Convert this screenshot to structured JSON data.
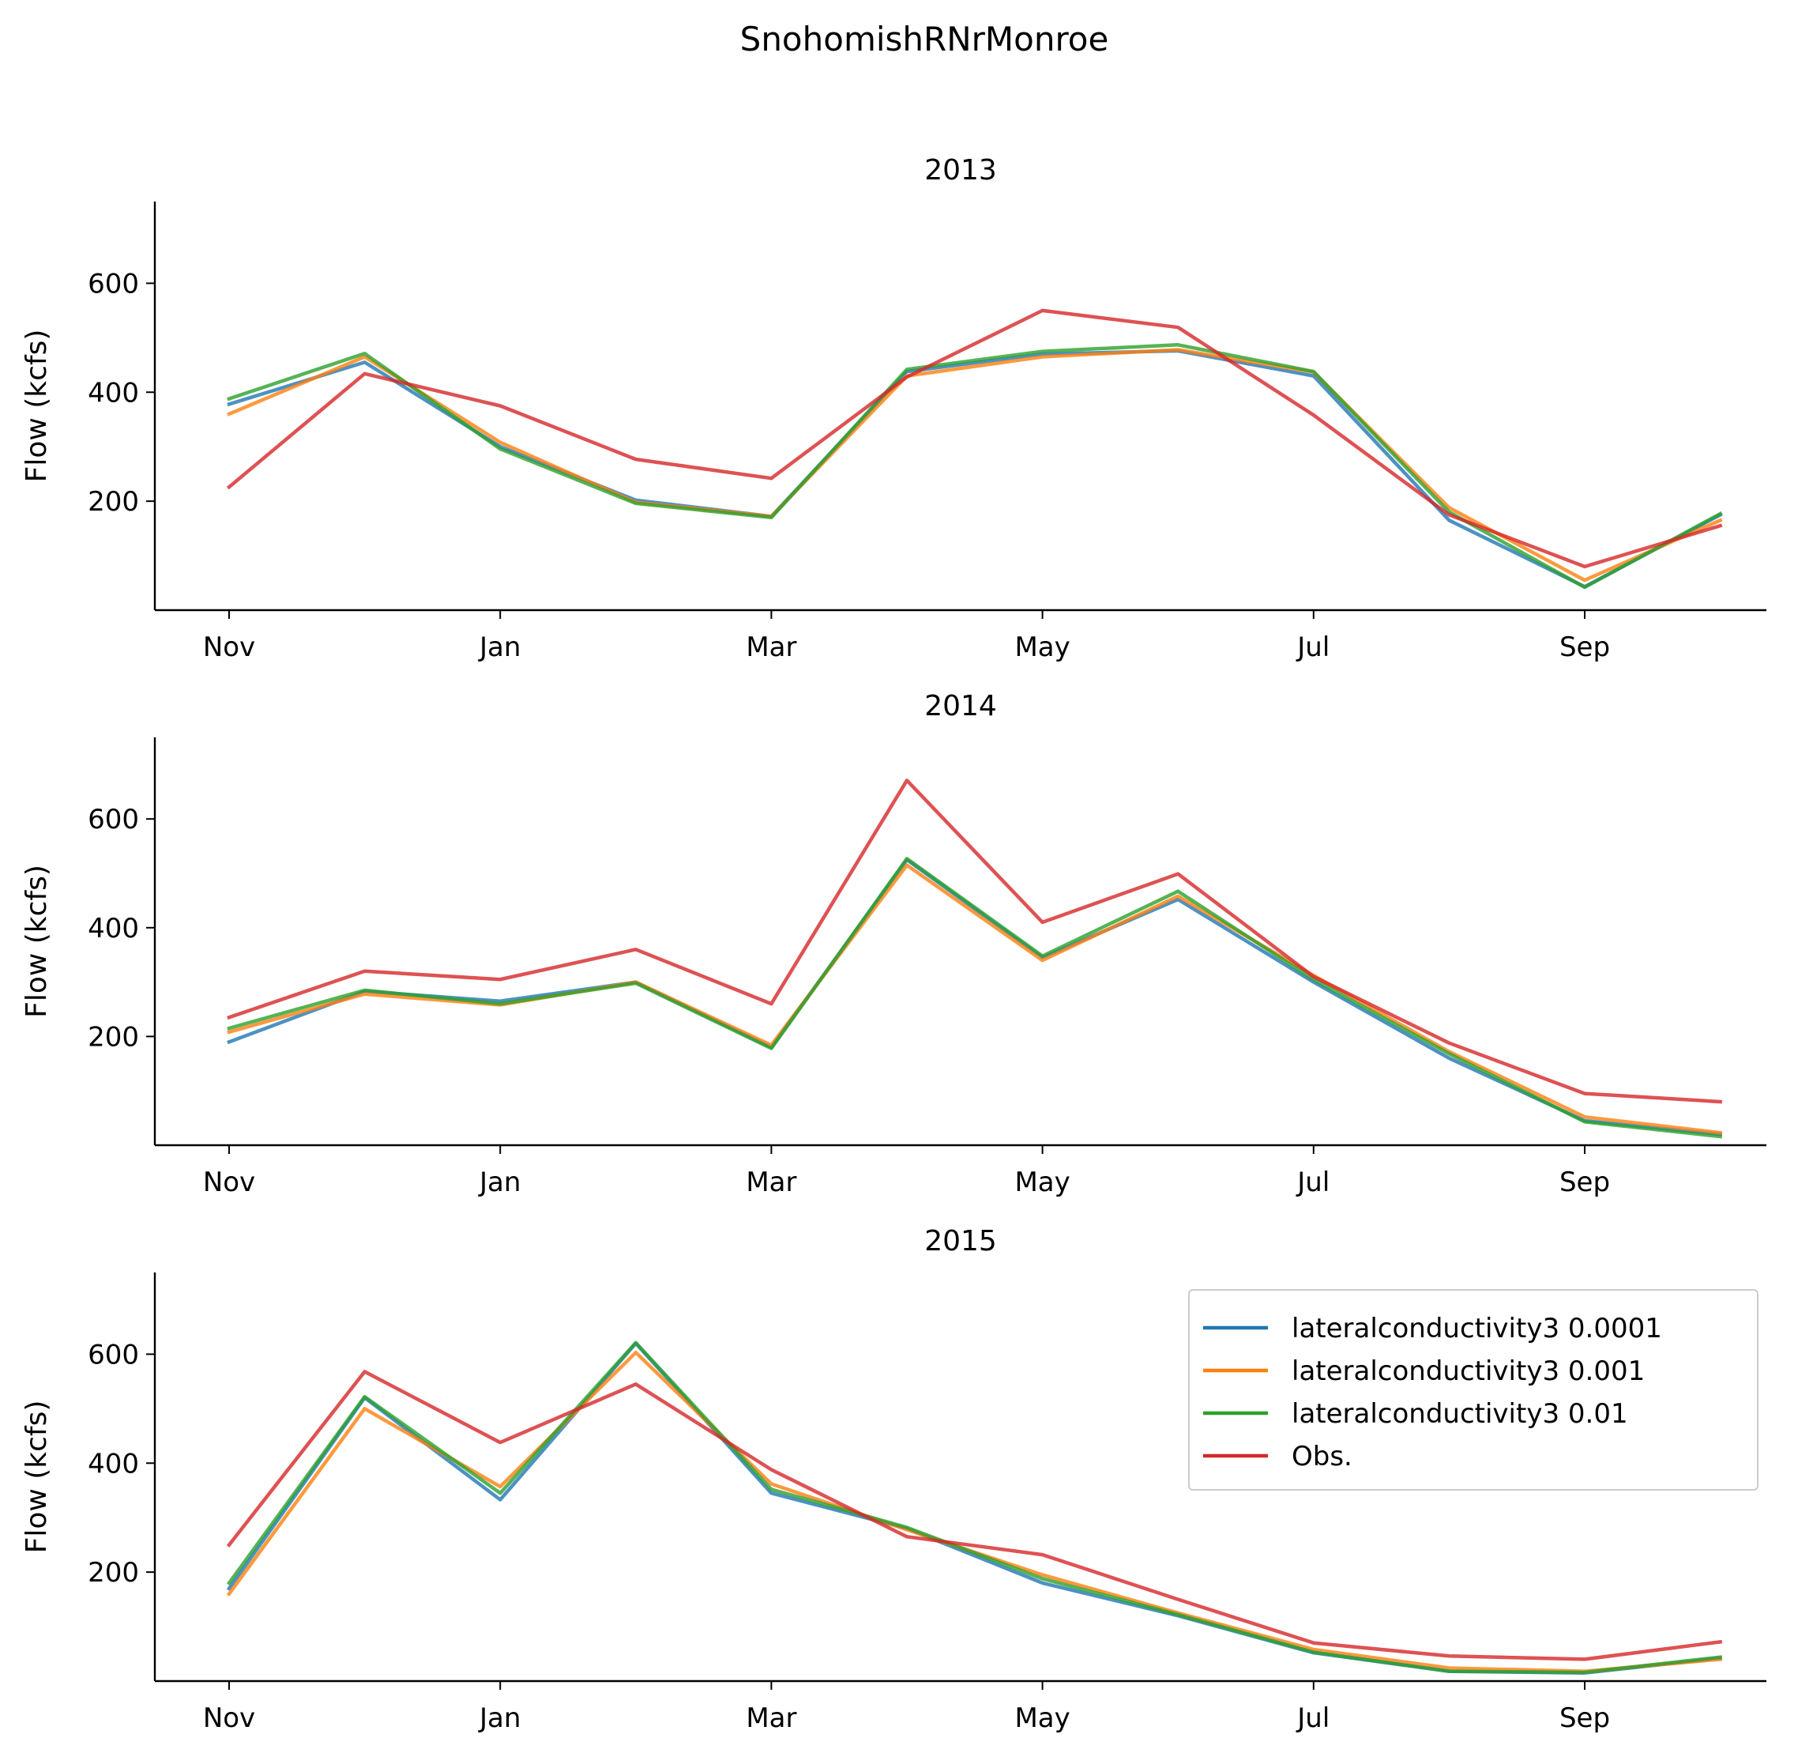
{
  "figure_title": "SnohomishRNrMonroe",
  "colors": {
    "lateralconductivity3 0.0001": "#1f77b4",
    "lateralconductivity3 0.001": "#ff7f0e",
    "lateralconductivity3 0.01": "#2ca02c",
    "Obs.": "#d62728"
  },
  "chart_data": [
    {
      "type": "line",
      "title": "2013",
      "ylabel": "Flow (kcfs)",
      "ylim": [
        0,
        750
      ],
      "yticks": [
        200,
        400,
        600
      ],
      "x": [
        0,
        1,
        2,
        3,
        4,
        5,
        6,
        7,
        8,
        9,
        10,
        11
      ],
      "xticks": [
        {
          "pos": 0,
          "label": "Nov"
        },
        {
          "pos": 2,
          "label": "Jan"
        },
        {
          "pos": 4,
          "label": "Mar"
        },
        {
          "pos": 6,
          "label": "May"
        },
        {
          "pos": 8,
          "label": "Jul"
        },
        {
          "pos": 10,
          "label": "Sep"
        }
      ],
      "series": [
        {
          "name": "lateralconductivity3 0.0001",
          "values": [
            378,
            455,
            300,
            202,
            172,
            438,
            470,
            476,
            430,
            165,
            43,
            175
          ]
        },
        {
          "name": "lateralconductivity3 0.001",
          "values": [
            360,
            465,
            308,
            198,
            172,
            430,
            465,
            478,
            437,
            188,
            55,
            165
          ]
        },
        {
          "name": "lateralconductivity3 0.01",
          "values": [
            388,
            471,
            296,
            196,
            170,
            442,
            475,
            487,
            438,
            180,
            42,
            177
          ]
        },
        {
          "name": "Obs.",
          "values": [
            226,
            434,
            375,
            277,
            242,
            428,
            550,
            519,
            358,
            175,
            80,
            155
          ]
        }
      ]
    },
    {
      "type": "line",
      "title": "2014",
      "ylabel": "Flow (kcfs)",
      "ylim": [
        0,
        750
      ],
      "yticks": [
        200,
        400,
        600
      ],
      "x": [
        0,
        1,
        2,
        3,
        4,
        5,
        6,
        7,
        8,
        9,
        10,
        11
      ],
      "xticks": [
        {
          "pos": 0,
          "label": "Nov"
        },
        {
          "pos": 2,
          "label": "Jan"
        },
        {
          "pos": 4,
          "label": "Mar"
        },
        {
          "pos": 6,
          "label": "May"
        },
        {
          "pos": 8,
          "label": "Jul"
        },
        {
          "pos": 10,
          "label": "Sep"
        }
      ],
      "series": [
        {
          "name": "lateralconductivity3 0.0001",
          "values": [
            190,
            283,
            265,
            300,
            180,
            525,
            345,
            452,
            300,
            160,
            45,
            20
          ]
        },
        {
          "name": "lateralconductivity3 0.001",
          "values": [
            208,
            278,
            258,
            300,
            184,
            515,
            340,
            458,
            312,
            172,
            52,
            23
          ]
        },
        {
          "name": "lateralconductivity3 0.01",
          "values": [
            215,
            285,
            260,
            298,
            178,
            527,
            348,
            467,
            305,
            168,
            43,
            16
          ]
        },
        {
          "name": "Obs.",
          "values": [
            235,
            320,
            305,
            360,
            260,
            671,
            410,
            499,
            310,
            188,
            95,
            80
          ]
        }
      ]
    },
    {
      "type": "line",
      "title": "2015",
      "ylabel": "Flow (kcfs)",
      "ylim": [
        0,
        750
      ],
      "yticks": [
        200,
        400,
        600
      ],
      "x": [
        0,
        1,
        2,
        3,
        4,
        5,
        6,
        7,
        8,
        9,
        10,
        11
      ],
      "xticks": [
        {
          "pos": 0,
          "label": "Nov"
        },
        {
          "pos": 2,
          "label": "Jan"
        },
        {
          "pos": 4,
          "label": "Mar"
        },
        {
          "pos": 6,
          "label": "May"
        },
        {
          "pos": 8,
          "label": "Jul"
        },
        {
          "pos": 10,
          "label": "Sep"
        }
      ],
      "legend": {
        "placement": "upper-right",
        "entries": [
          "lateralconductivity3 0.0001",
          "lateralconductivity3 0.001",
          "lateralconductivity3 0.01",
          "Obs."
        ]
      },
      "series": [
        {
          "name": "lateralconductivity3 0.0001",
          "values": [
            170,
            520,
            333,
            620,
            345,
            280,
            180,
            120,
            52,
            18,
            15,
            42
          ]
        },
        {
          "name": "lateralconductivity3 0.001",
          "values": [
            160,
            500,
            357,
            603,
            362,
            278,
            195,
            125,
            58,
            24,
            18,
            40
          ]
        },
        {
          "name": "lateralconductivity3 0.01",
          "values": [
            180,
            522,
            345,
            621,
            352,
            282,
            188,
            122,
            53,
            18,
            16,
            44
          ]
        },
        {
          "name": "Obs.",
          "values": [
            250,
            568,
            438,
            545,
            388,
            265,
            232,
            150,
            70,
            46,
            40,
            72
          ]
        }
      ]
    }
  ]
}
